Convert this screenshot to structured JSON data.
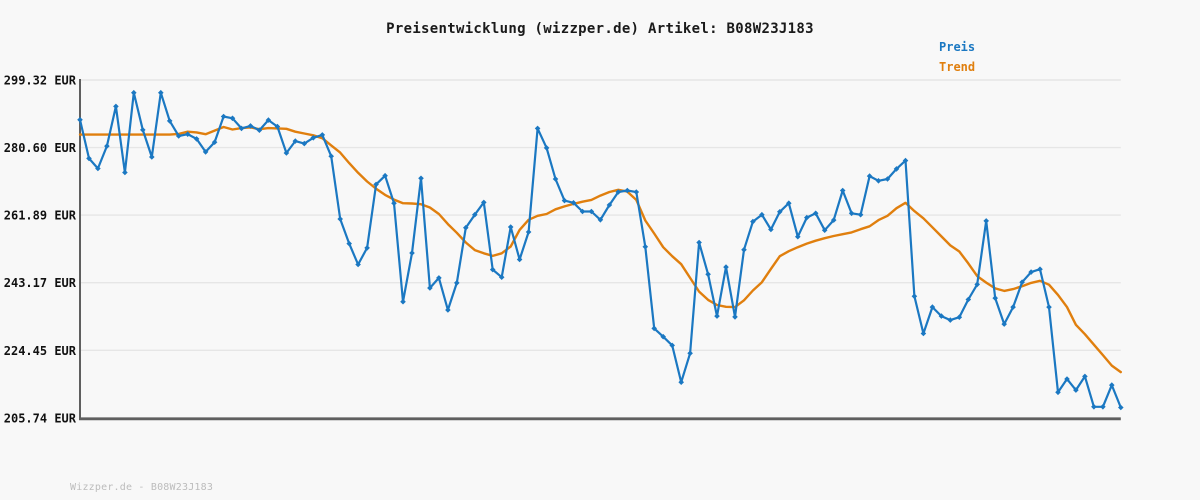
{
  "chart_data": {
    "type": "line",
    "title": "Preisentwicklung (wizzper.de) Artikel: B08W23J183",
    "xlabel": "",
    "ylabel": "",
    "x_tick_labels": [],
    "ylim": [
      205.74,
      299.32
    ],
    "grid": true,
    "legend_position": "top-right",
    "y_ticks": [
      {
        "value": 299.32,
        "label": "299.32 EUR"
      },
      {
        "value": 280.6,
        "label": "280.60 EUR"
      },
      {
        "value": 261.89,
        "label": "261.89 EUR"
      },
      {
        "value": 243.17,
        "label": "243.17 EUR"
      },
      {
        "value": 224.45,
        "label": "224.45 EUR"
      },
      {
        "value": 205.74,
        "label": "205.74 EUR"
      }
    ],
    "series": [
      {
        "name": "Preis",
        "color": "#1b78c2",
        "marker": "diamond",
        "line_width": 2.2,
        "values": [
          288.3,
          277.6,
          274.8,
          281.0,
          292.0,
          273.7,
          295.8,
          285.5,
          278.0,
          295.8,
          288.0,
          283.8,
          284.3,
          283.0,
          279.4,
          282.1,
          289.2,
          288.7,
          285.9,
          286.6,
          285.4,
          288.2,
          286.4,
          279.1,
          282.4,
          281.7,
          283.3,
          284.1,
          278.2,
          260.8,
          254.0,
          248.2,
          252.8,
          270.4,
          272.8,
          265.2,
          237.9,
          251.4,
          272.1,
          241.7,
          244.5,
          235.6,
          243.1,
          258.4,
          262.0,
          265.4,
          246.8,
          244.7,
          258.6,
          249.6,
          257.2,
          285.9,
          280.5,
          271.9,
          265.9,
          265.3,
          262.9,
          262.9,
          260.6,
          264.7,
          268.3,
          268.7,
          268.3,
          253.1,
          230.5,
          228.2,
          225.8,
          215.6,
          223.6,
          254.3,
          245.5,
          233.9,
          247.5,
          233.7,
          252.3,
          260.1,
          262.0,
          257.9,
          262.8,
          265.2,
          255.9,
          261.2,
          262.4,
          257.7,
          260.5,
          268.7,
          262.4,
          262.0,
          272.7,
          271.4,
          271.9,
          274.7,
          277.0,
          239.4,
          229.1,
          236.4,
          233.9,
          232.8,
          233.6,
          238.5,
          242.7,
          260.3,
          238.9,
          231.7,
          236.4,
          243.3,
          246.1,
          246.9,
          236.4,
          212.8,
          216.5,
          213.4,
          217.2,
          208.8,
          208.8,
          214.8,
          208.6
        ]
      },
      {
        "name": "Trend",
        "color": "#e07f0e",
        "marker": "none",
        "line_width": 2.4,
        "values": [
          284.2,
          284.2,
          284.2,
          284.2,
          284.2,
          284.2,
          284.2,
          284.2,
          284.2,
          284.2,
          284.2,
          284.4,
          285.0,
          284.8,
          284.3,
          285.3,
          286.3,
          285.6,
          286.0,
          286.2,
          285.7,
          286.0,
          285.9,
          285.8,
          285.0,
          284.5,
          284.0,
          283.2,
          281.2,
          279.2,
          276.3,
          273.6,
          271.2,
          269.2,
          267.5,
          266.2,
          265.2,
          265.1,
          264.9,
          264.0,
          262.2,
          259.4,
          257.0,
          254.3,
          252.2,
          251.3,
          250.6,
          251.3,
          253.2,
          257.8,
          260.6,
          261.7,
          262.2,
          263.5,
          264.3,
          265.0,
          265.6,
          266.1,
          267.3,
          268.3,
          268.9,
          268.4,
          266.1,
          260.4,
          256.8,
          253.0,
          250.5,
          248.3,
          244.5,
          240.7,
          238.4,
          237.0,
          236.5,
          236.4,
          238.3,
          241.0,
          243.3,
          247.0,
          250.5,
          251.9,
          253.0,
          254.0,
          254.8,
          255.5,
          256.1,
          256.6,
          257.1,
          258.0,
          258.8,
          260.5,
          261.7,
          263.8,
          265.3,
          263.0,
          261.0,
          258.5,
          256.0,
          253.5,
          251.8,
          248.5,
          245.0,
          243.2,
          241.6,
          240.9,
          241.4,
          242.2,
          243.1,
          243.7,
          242.6,
          239.8,
          236.4,
          231.5,
          228.9,
          226.0,
          223.1,
          220.2,
          218.4
        ]
      }
    ]
  },
  "colors": {
    "background": "#f8f8f8",
    "grid": "#e6e6e6",
    "axis": "#5f5f5f",
    "title": "#1a1a1a",
    "tick": "#111111",
    "footer": "#bcbcbc"
  },
  "footer": {
    "text": "Wizzper.de - B08W23J183"
  }
}
